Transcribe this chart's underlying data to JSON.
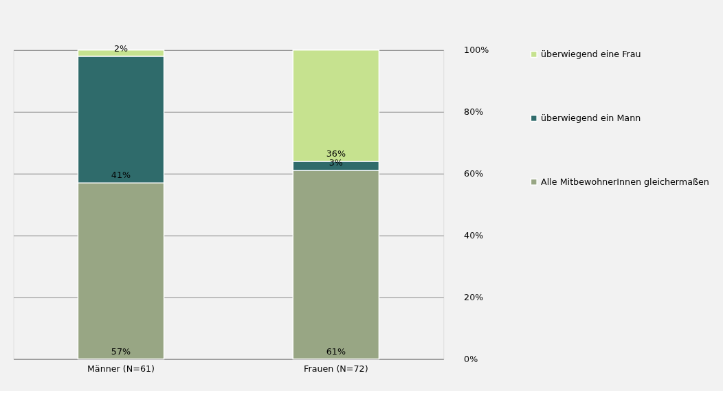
{
  "chart_data": {
    "type": "bar",
    "stacked": true,
    "categories": [
      "Männer (N=61)",
      "Frauen (N=72)"
    ],
    "series": [
      {
        "name": "Alle MitbewohnerInnen gleichermaßen",
        "color": "#98a684",
        "values": [
          57,
          61
        ],
        "value_labels": [
          "57%",
          "61%"
        ]
      },
      {
        "name": "überwiegend ein Mann",
        "color": "#2f6b6b",
        "values": [
          41,
          3
        ],
        "value_labels": [
          "41%",
          "3%"
        ]
      },
      {
        "name": "überwiegend eine Frau",
        "color": "#c6e28f",
        "values": [
          2,
          36
        ],
        "value_labels": [
          "2%",
          "36%"
        ]
      }
    ],
    "ylim": [
      0,
      100
    ],
    "yticks": [
      {
        "value": 0,
        "label": "0%"
      },
      {
        "value": 20,
        "label": "20%"
      },
      {
        "value": 40,
        "label": "40%"
      },
      {
        "value": 60,
        "label": "60%"
      },
      {
        "value": 80,
        "label": "80%"
      },
      {
        "value": 100,
        "label": "100%"
      }
    ],
    "grid": "y",
    "legend": "right"
  }
}
